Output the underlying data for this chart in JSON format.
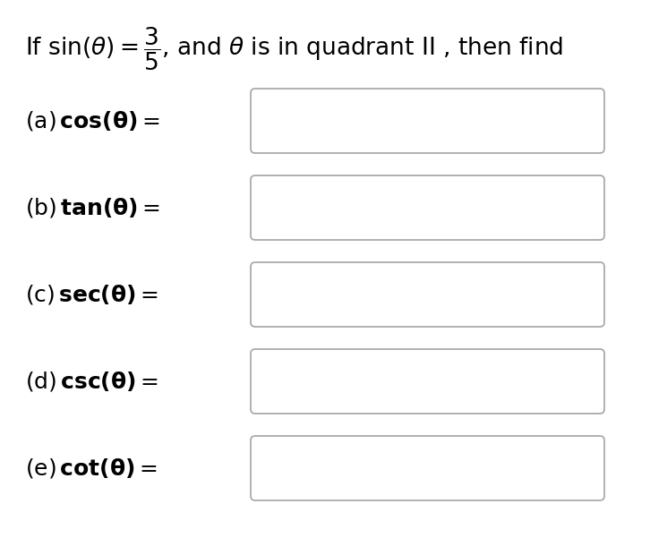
{
  "background_color": "#ffffff",
  "items": [
    {
      "label": "(a)",
      "func": "cos"
    },
    {
      "label": "(b)",
      "func": "tan"
    },
    {
      "label": "(c)",
      "func": "sec"
    },
    {
      "label": "(d)",
      "func": "csc"
    },
    {
      "label": "(e)",
      "func": "cot"
    }
  ],
  "box_edge_color": "#aaaaaa",
  "box_fill_color": "#ffffff",
  "text_color": "#000000",
  "header_fontsize": 19,
  "item_fontsize": 18,
  "fig_width": 7.26,
  "fig_height": 6.2,
  "dpi": 100
}
